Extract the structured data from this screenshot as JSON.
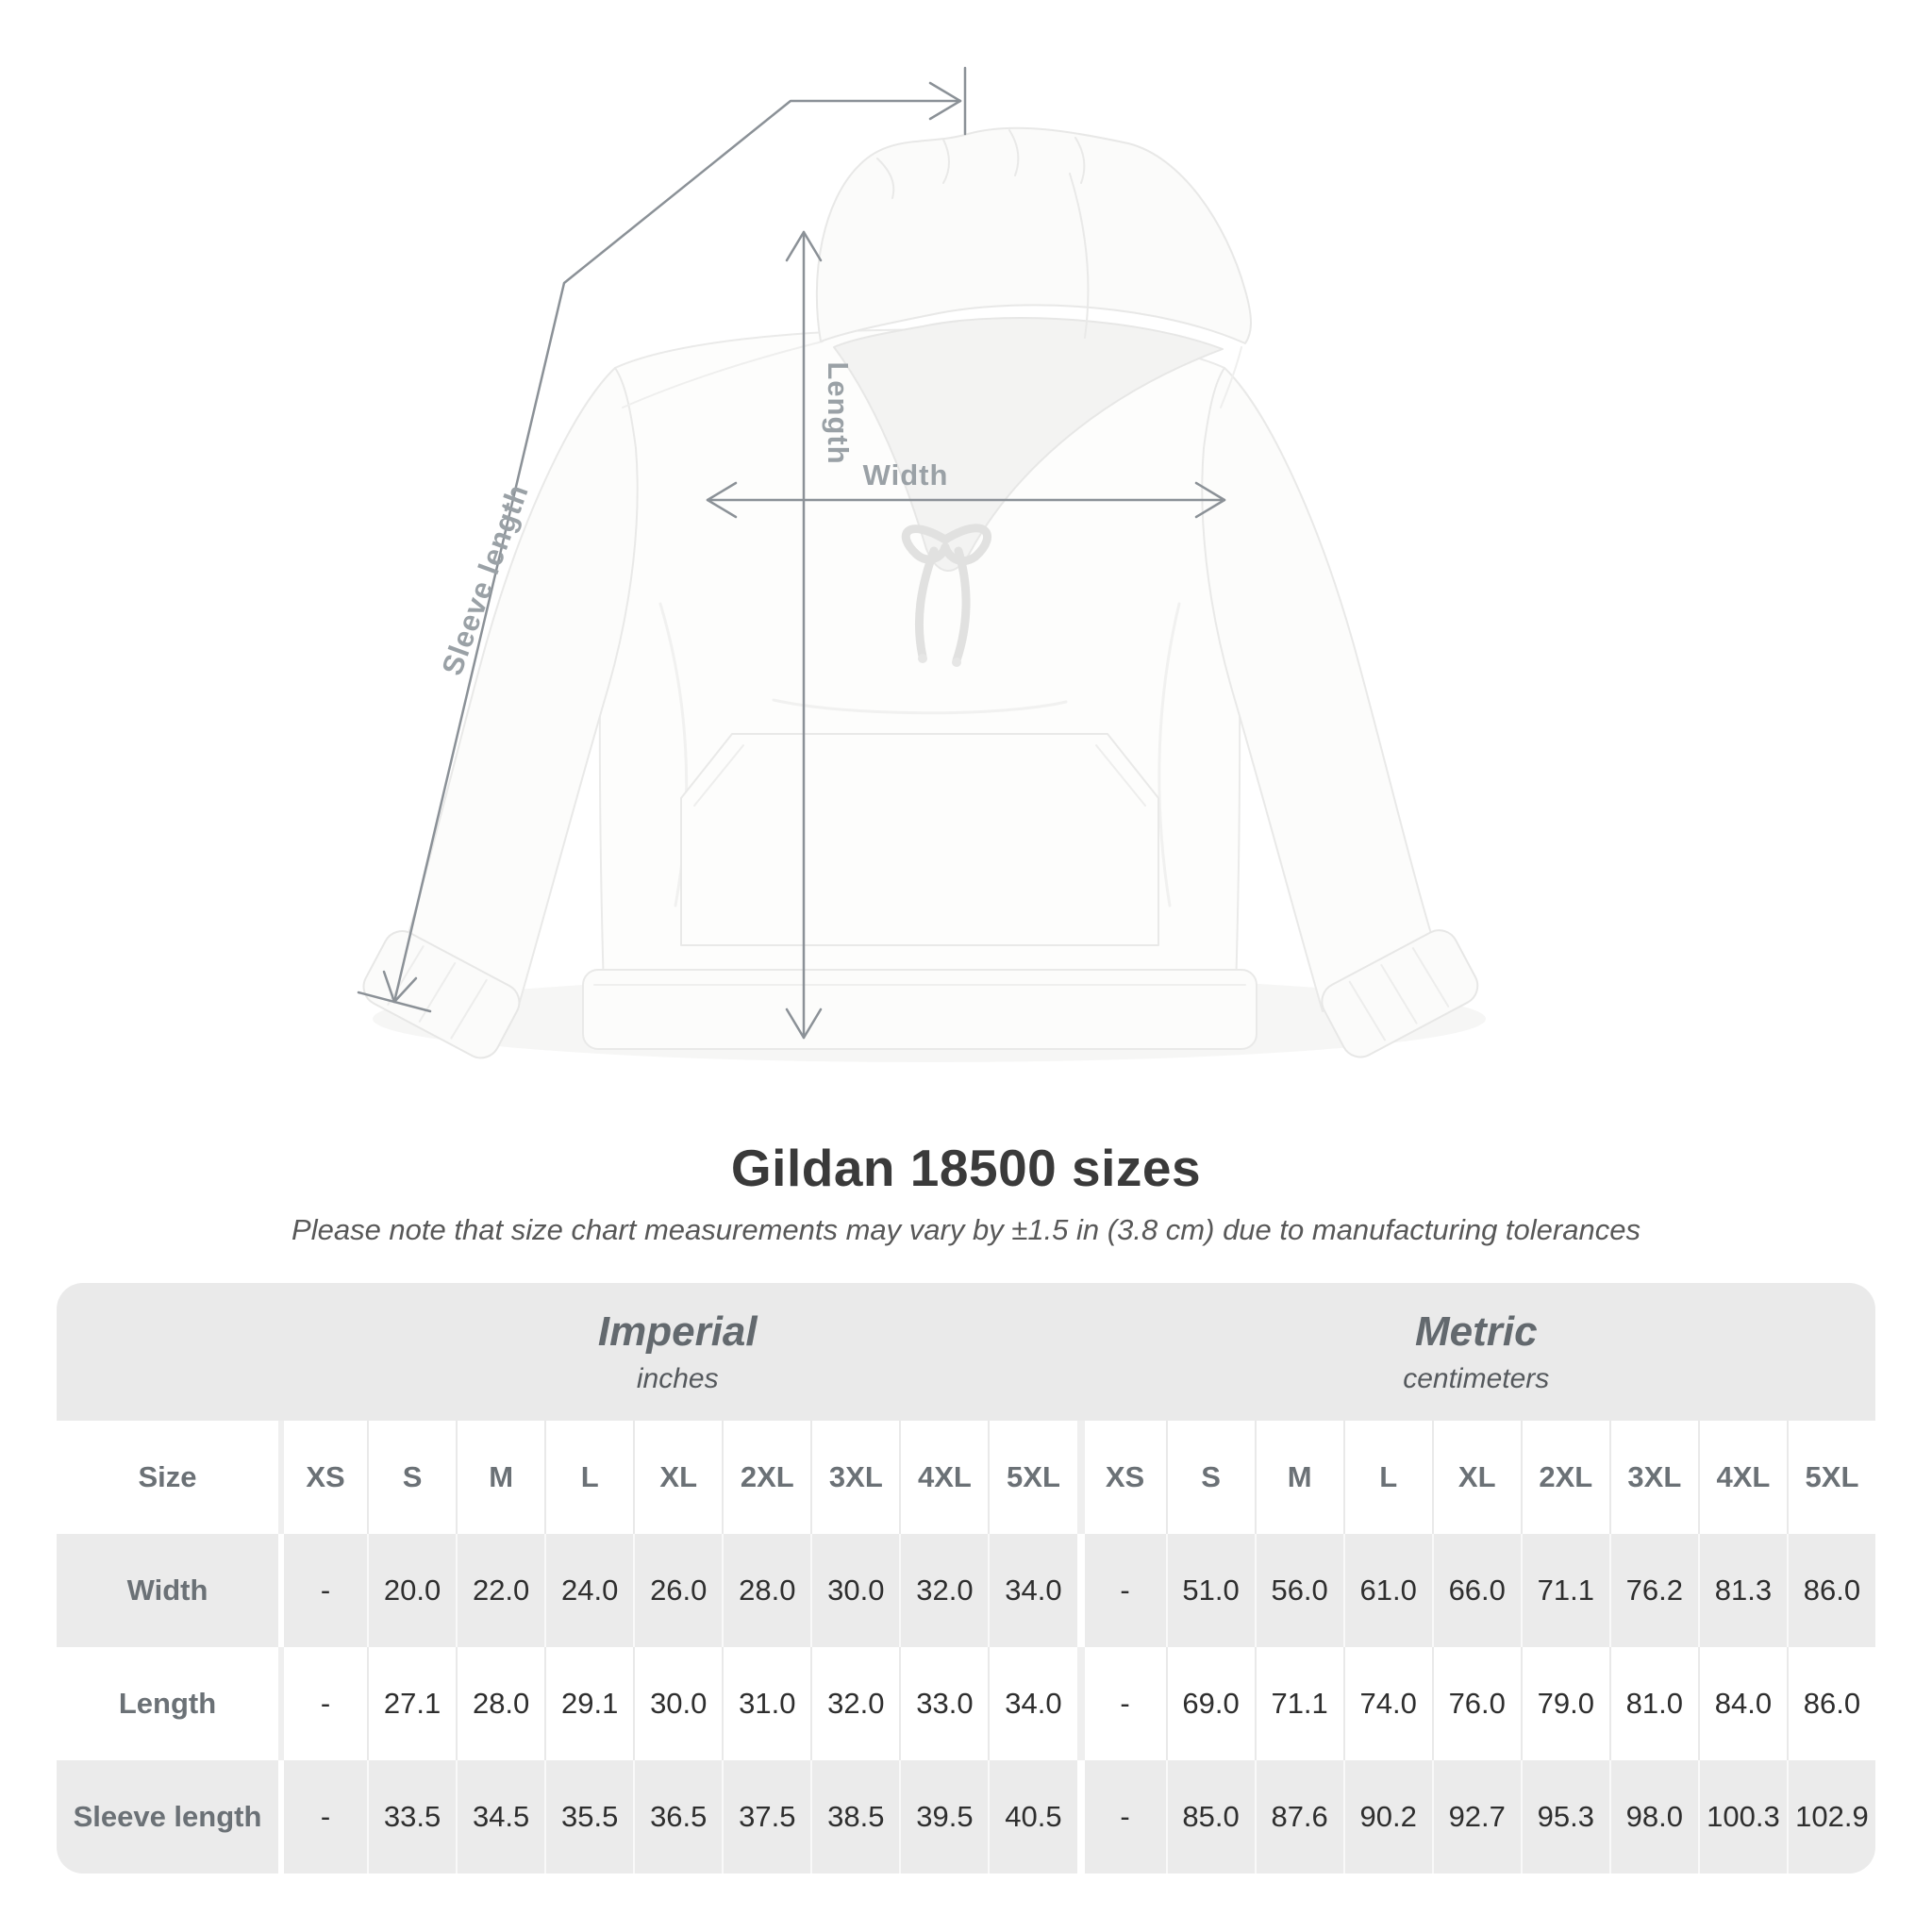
{
  "diagram": {
    "length_label": "Length",
    "width_label": "Width",
    "sleeve_label": "Sleeve length",
    "arrow_color": "#8b9197",
    "label_color": "#9aa1a6"
  },
  "heading": {
    "title": "Gildan 18500 sizes",
    "subtitle": "Please note that size chart measurements may vary by ±1.5 in (3.8 cm) due to manufacturing tolerances"
  },
  "size_table": {
    "corner_label": "Size",
    "groups": [
      {
        "name": "Imperial",
        "unit": "inches"
      },
      {
        "name": "Metric",
        "unit": "centimeters"
      }
    ],
    "sizes": [
      "XS",
      "S",
      "M",
      "L",
      "XL",
      "2XL",
      "3XL",
      "4XL",
      "5XL"
    ],
    "rows": [
      {
        "label": "Width",
        "imperial": [
          "-",
          "20.0",
          "22.0",
          "24.0",
          "26.0",
          "28.0",
          "30.0",
          "32.0",
          "34.0"
        ],
        "metric": [
          "-",
          "51.0",
          "56.0",
          "61.0",
          "66.0",
          "71.1",
          "76.2",
          "81.3",
          "86.0"
        ],
        "shaded": true
      },
      {
        "label": "Length",
        "imperial": [
          "-",
          "27.1",
          "28.0",
          "29.1",
          "30.0",
          "31.0",
          "32.0",
          "33.0",
          "34.0"
        ],
        "metric": [
          "-",
          "69.0",
          "71.1",
          "74.0",
          "76.0",
          "79.0",
          "81.0",
          "84.0",
          "86.0"
        ],
        "shaded": false
      },
      {
        "label": "Sleeve length",
        "imperial": [
          "-",
          "33.5",
          "34.5",
          "35.5",
          "36.5",
          "37.5",
          "38.5",
          "39.5",
          "40.5"
        ],
        "metric": [
          "-",
          "85.0",
          "87.6",
          "90.2",
          "92.7",
          "95.3",
          "98.0",
          "100.3",
          "102.9"
        ],
        "shaded": true
      }
    ],
    "colors": {
      "band": "#eaeaea",
      "stripe": "#ebebeb",
      "header_text": "#6b7176",
      "value_text": "#2e2e2e"
    }
  },
  "chart_data": {
    "type": "table",
    "title": "Gildan 18500 sizes",
    "note": "Measurements may vary by ±1.5 in (3.8 cm)",
    "sizes": [
      "XS",
      "S",
      "M",
      "L",
      "XL",
      "2XL",
      "3XL",
      "4XL",
      "5XL"
    ],
    "measures": [
      {
        "name": "Width",
        "inches": [
          null,
          20.0,
          22.0,
          24.0,
          26.0,
          28.0,
          30.0,
          32.0,
          34.0
        ],
        "centimeters": [
          null,
          51.0,
          56.0,
          61.0,
          66.0,
          71.1,
          76.2,
          81.3,
          86.0
        ]
      },
      {
        "name": "Length",
        "inches": [
          null,
          27.1,
          28.0,
          29.1,
          30.0,
          31.0,
          32.0,
          33.0,
          34.0
        ],
        "centimeters": [
          null,
          69.0,
          71.1,
          74.0,
          76.0,
          79.0,
          81.0,
          84.0,
          86.0
        ]
      },
      {
        "name": "Sleeve length",
        "inches": [
          null,
          33.5,
          34.5,
          35.5,
          36.5,
          37.5,
          38.5,
          39.5,
          40.5
        ],
        "centimeters": [
          null,
          85.0,
          87.6,
          90.2,
          92.7,
          95.3,
          98.0,
          100.3,
          102.9
        ]
      }
    ]
  }
}
